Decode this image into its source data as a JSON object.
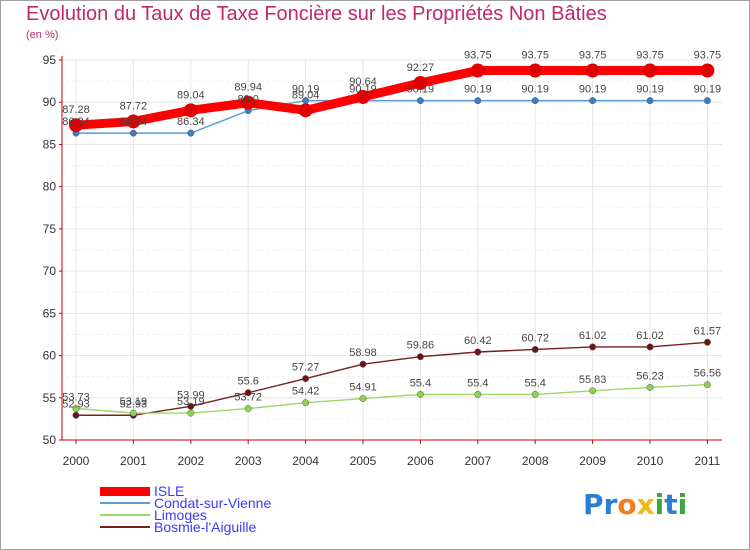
{
  "header": {
    "title": "Evolution du Taux de Taxe Foncière sur les Propriétés Non Bâties",
    "unit": "(en %)"
  },
  "logo": {
    "text": "Proxiti",
    "colors": [
      "#2a7fd4",
      "#2a7fd4",
      "#f07d1e",
      "#f0b91e",
      "#3aa83a",
      "#2a7fd4",
      "#3aa83a"
    ]
  },
  "chart_data": {
    "type": "line",
    "x": [
      "2000",
      "2001",
      "2002",
      "2003",
      "2004",
      "2005",
      "2006",
      "2007",
      "2008",
      "2009",
      "2010",
      "2011"
    ],
    "ylim": [
      50,
      95
    ],
    "yticks": [
      50,
      55,
      60,
      65,
      70,
      75,
      80,
      85,
      90,
      95
    ],
    "grid": true,
    "legend_position": "bottom-left",
    "series": [
      {
        "name": "ISLE",
        "color": "#ff0000",
        "marker": "#e00000",
        "values": [
          87.28,
          87.72,
          89.04,
          89.94,
          89.04,
          90.64,
          92.27,
          93.75,
          93.75,
          93.75,
          93.75,
          93.75
        ],
        "labels": [
          "87.28",
          "87.72",
          "89.04",
          "89.94",
          "89.04",
          "90.64",
          "92.27",
          "93.75",
          "93.75",
          "93.75",
          "93.75",
          "93.75"
        ]
      },
      {
        "name": "Condat-sur-Vienne",
        "color": "#5b9bd5",
        "marker": "#3a7ec4",
        "values": [
          86.34,
          86.34,
          86.34,
          89.0,
          90.19,
          90.19,
          90.19,
          90.19,
          90.19,
          90.19,
          90.19,
          90.19
        ],
        "labels": [
          "86.34",
          "86.34",
          "86.34",
          "89.0",
          "90.19",
          "90.19",
          "90.19",
          "90.19",
          "90.19",
          "90.19",
          "90.19",
          "90.19"
        ]
      },
      {
        "name": "Limoges",
        "color": "#9ed66a",
        "marker": "#8fd44f",
        "values": [
          53.73,
          53.19,
          53.19,
          53.72,
          54.42,
          54.91,
          55.4,
          55.4,
          55.4,
          55.83,
          56.23,
          56.56
        ],
        "labels": [
          "53.73",
          "53.19",
          "53.19",
          "53.72",
          "54.42",
          "54.91",
          "55.4",
          "55.4",
          "55.4",
          "55.83",
          "56.23",
          "56.56"
        ]
      },
      {
        "name": "Bosmie-l'Aiguille",
        "color": "#7a1f1f",
        "marker": "#6b1515",
        "values": [
          52.93,
          52.93,
          53.99,
          55.6,
          57.27,
          58.98,
          59.86,
          60.42,
          60.72,
          61.02,
          61.02,
          61.57
        ],
        "labels": [
          "52.93",
          "52.93",
          "53.99",
          "55.6",
          "57.27",
          "58.98",
          "59.86",
          "60.42",
          "60.72",
          "61.02",
          "61.02",
          "61.57"
        ]
      }
    ]
  }
}
